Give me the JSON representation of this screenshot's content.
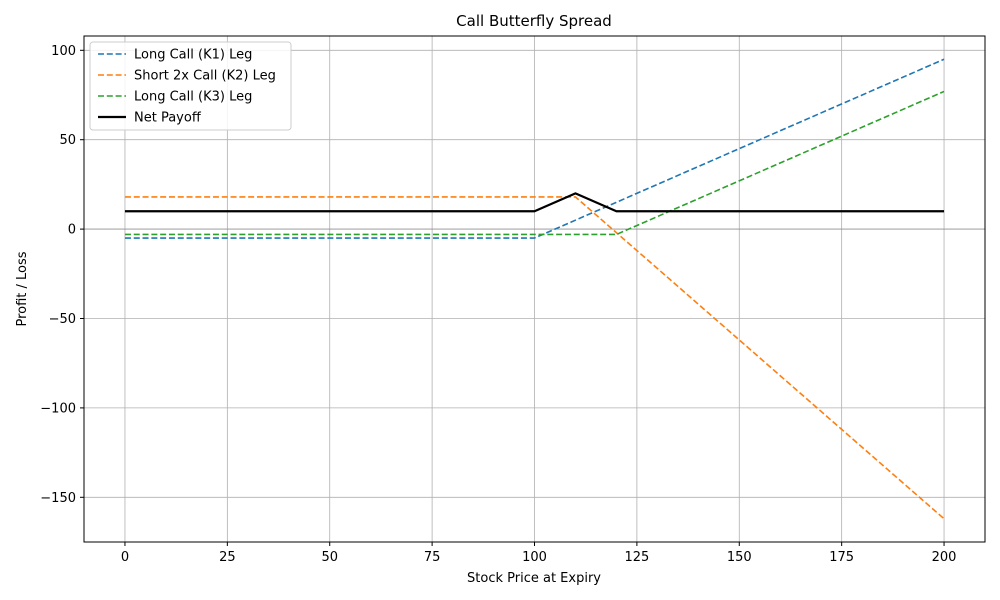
{
  "chart_data": {
    "type": "line",
    "title": "Call Butterfly Spread",
    "xlabel": "Stock Price at Expiry",
    "ylabel": "Profit / Loss",
    "xlim": [
      -10,
      210
    ],
    "ylim": [
      -175,
      108
    ],
    "xticks": [
      0,
      25,
      50,
      75,
      100,
      125,
      150,
      175,
      200
    ],
    "yticks": [
      -150,
      -100,
      -50,
      0,
      50,
      100
    ],
    "grid": true,
    "legend_position": "upper-left",
    "series": [
      {
        "name": "Long Call (K1) Leg",
        "color": "#1f77b4",
        "style": "dashed",
        "x": [
          0,
          100,
          200
        ],
        "y": [
          -5,
          -5,
          95
        ]
      },
      {
        "name": "Short 2x Call (K2) Leg",
        "color": "#ff7f0e",
        "style": "dashed",
        "x": [
          0,
          110,
          200
        ],
        "y": [
          18,
          18,
          -162
        ]
      },
      {
        "name": "Long Call (K3) Leg",
        "color": "#2ca02c",
        "style": "dashed",
        "x": [
          0,
          120,
          200
        ],
        "y": [
          -3,
          -3,
          77
        ]
      },
      {
        "name": "Net Payoff",
        "color": "#000000",
        "style": "solid",
        "x": [
          0,
          100,
          110,
          120,
          200
        ],
        "y": [
          10,
          10,
          20,
          10,
          10
        ]
      }
    ]
  }
}
